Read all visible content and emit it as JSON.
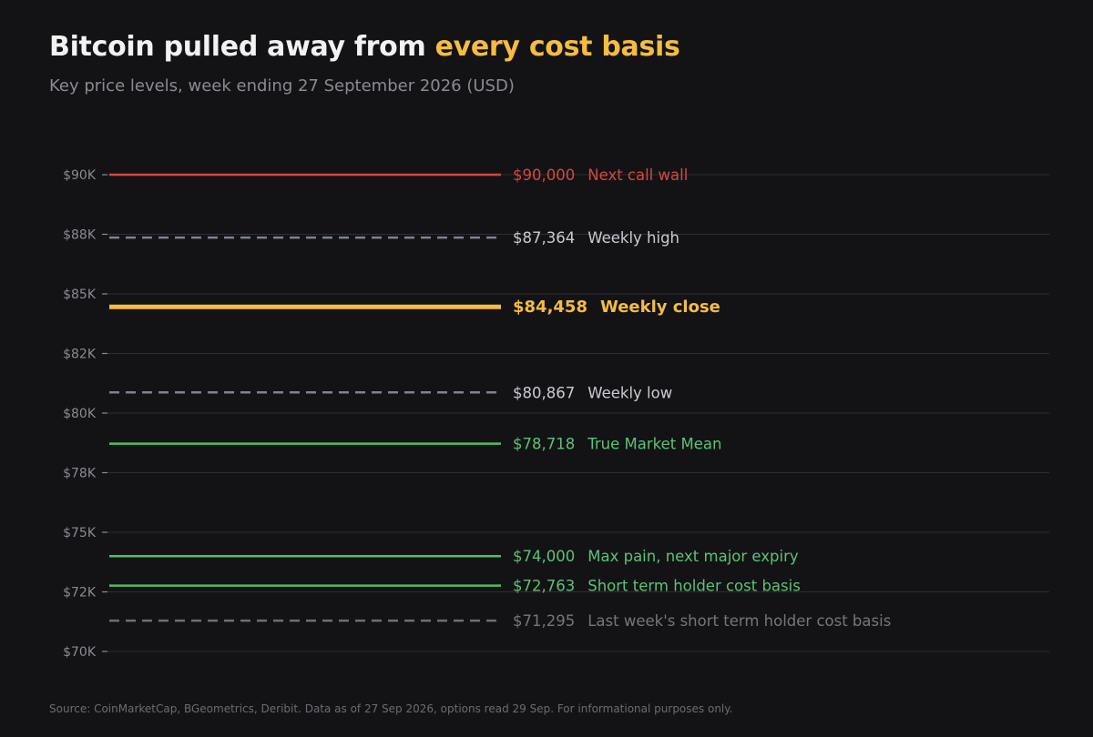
{
  "title": {
    "main": "Bitcoin pulled away from ",
    "highlight": "every cost basis"
  },
  "subtitle": "Key price levels, week ending 27 September 2026 (USD)",
  "source": "Source: CoinMarketCap, BGeometrics, Deribit. Data as of 27 Sep 2026, options read 29 Sep.  For informational purposes only.",
  "colors": {
    "background": "#131316",
    "accent": "#f5bc42",
    "red": "#d9463f",
    "green": "#4fbf67",
    "slate": "#7c8394",
    "gray": "#6e6e74",
    "grid": "#2e2e33",
    "axis_text": "#8a8a93"
  },
  "chart_data": {
    "type": "line",
    "title": "Bitcoin pulled away from every cost basis",
    "subtitle": "Key price levels, week ending 27 September 2026 (USD)",
    "xlabel": "",
    "ylabel": "",
    "ylim": [
      70000,
      90000
    ],
    "y_ticks": [
      {
        "value": 90000,
        "label": "$90K"
      },
      {
        "value": 87500,
        "label": "$88K"
      },
      {
        "value": 85000,
        "label": "$85K"
      },
      {
        "value": 82500,
        "label": "$82K"
      },
      {
        "value": 80000,
        "label": "$80K"
      },
      {
        "value": 77500,
        "label": "$78K"
      },
      {
        "value": 75000,
        "label": "$75K"
      },
      {
        "value": 72500,
        "label": "$72K"
      },
      {
        "value": 70000,
        "label": "$70K"
      }
    ],
    "grid": true,
    "levels": [
      {
        "value": 90000,
        "value_label": "$90,000",
        "name": "Next call wall",
        "style": "solid",
        "color": "#d9463f",
        "text_color": "#d9463f",
        "emphasis": false
      },
      {
        "value": 87364,
        "value_label": "$87,364",
        "name": "Weekly high",
        "style": "dashed",
        "color": "#7c8394",
        "text_color": "#c9cbd2",
        "emphasis": false
      },
      {
        "value": 84458,
        "value_label": "$84,458",
        "name": "Weekly close",
        "style": "solid",
        "color": "#f5bc42",
        "text_color": "#f5bc42",
        "emphasis": true
      },
      {
        "value": 80867,
        "value_label": "$80,867",
        "name": "Weekly low",
        "style": "dashed",
        "color": "#7c8394",
        "text_color": "#c9cbd2",
        "emphasis": false
      },
      {
        "value": 78718,
        "value_label": "$78,718",
        "name": "True Market Mean",
        "style": "solid",
        "color": "#4fbf67",
        "text_color": "#5cc274",
        "emphasis": false
      },
      {
        "value": 74000,
        "value_label": "$74,000",
        "name": "Max pain, next major expiry",
        "style": "solid",
        "color": "#4fbf67",
        "text_color": "#5cc274",
        "emphasis": false
      },
      {
        "value": 72763,
        "value_label": "$72,763",
        "name": "Short term holder cost basis",
        "style": "solid",
        "color": "#4fbf67",
        "text_color": "#5cc274",
        "emphasis": false
      },
      {
        "value": 71295,
        "value_label": "$71,295",
        "name": "Last week's short term holder cost basis",
        "style": "dashed",
        "color": "#6e6e74",
        "text_color": "#75757c",
        "emphasis": false
      }
    ]
  }
}
